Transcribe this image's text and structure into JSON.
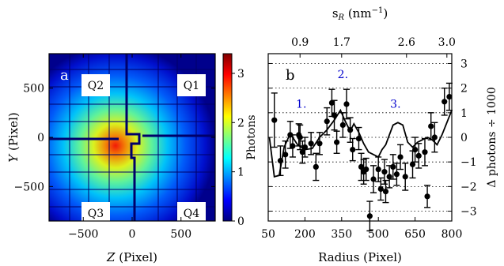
{
  "chart_data": [
    {
      "panel": "a",
      "type": "heatmap",
      "xlabel_var": "Z",
      "xlabel_unit": "(Pixel)",
      "ylabel_var": "Y",
      "ylabel_unit": "(Pixel)",
      "xlim": [
        -850,
        850
      ],
      "ylim": [
        -850,
        850
      ],
      "xticks": [
        "−500",
        "0",
        "500"
      ],
      "xtick_values": [
        -500,
        0,
        500
      ],
      "yticks": [
        "500",
        "0",
        "−500"
      ],
      "ytick_values": [
        500,
        0,
        -500
      ],
      "quadrant_labels": [
        "Q1",
        "Q2",
        "Q3",
        "Q4"
      ],
      "colorbar": {
        "label": "Photons",
        "range": [
          0,
          3.4
        ],
        "ticks": [
          "0",
          "1",
          "2",
          "3"
        ],
        "tick_values": [
          0,
          1,
          2,
          3
        ],
        "colormap": [
          "#00007f",
          "#0000ff",
          "#007fff",
          "#00ffff",
          "#7fff7f",
          "#ffff00",
          "#ff7f00",
          "#ff0000",
          "#7f0000"
        ]
      }
    },
    {
      "panel": "b",
      "type": "scatter",
      "xlabel": "Radius (Pixel)",
      "top_xlabel": "s",
      "top_xlabel_sub": "R",
      "top_xlabel_unit": " (nm",
      "top_xlabel_exp": "−1",
      "top_xlabel_close": ")",
      "ylabel": "Δ photons ÷ 1000",
      "xlim": [
        50,
        800
      ],
      "ylim": [
        -3.4,
        3.4
      ],
      "xticks": [
        "50",
        "200",
        "350",
        "500",
        "650",
        "800"
      ],
      "xtick_values": [
        50,
        200,
        350,
        500,
        650,
        800
      ],
      "yticks": [
        "3",
        "2",
        "1",
        "0",
        "−1",
        "−2",
        "−3"
      ],
      "ytick_values": [
        3,
        2,
        1,
        0,
        -1,
        -2,
        -3
      ],
      "top_xticks": [
        "0.9",
        "1.7",
        "2.6",
        "3.0"
      ],
      "top_xtick_positions": [
        180,
        350,
        615,
        780
      ],
      "grid": "horizontal dotted",
      "annotations": [
        {
          "text": "1.",
          "x": 185,
          "y": 1.2
        },
        {
          "text": "2.",
          "x": 355,
          "y": 2.4
        },
        {
          "text": "3.",
          "x": 570,
          "y": 1.2
        }
      ],
      "annotation_color": "#0000cc",
      "series": [
        {
          "kind": "points_with_errorbars",
          "x": [
            75,
            100,
            120,
            140,
            150,
            175,
            180,
            190,
            200,
            225,
            245,
            260,
            290,
            310,
            320,
            330,
            355,
            370,
            385,
            395,
            420,
            430,
            440,
            450,
            465,
            480,
            500,
            510,
            525,
            530,
            545,
            560,
            575,
            590,
            610,
            640,
            650,
            665,
            690,
            700,
            715,
            730,
            770,
            790
          ],
          "y": [
            0.7,
            -0.95,
            -0.7,
            0.1,
            -0.35,
            0.1,
            0.0,
            -0.6,
            -0.4,
            -0.25,
            -1.2,
            -0.25,
            0.65,
            1.4,
            0.9,
            -0.2,
            0.5,
            1.35,
            0.3,
            -0.5,
            -0.05,
            -1.2,
            -1.4,
            -1.3,
            -3.2,
            -1.7,
            -1.3,
            -2.1,
            -1.4,
            -2.2,
            -1.6,
            -1.2,
            -1.5,
            -0.8,
            -1.6,
            -1.1,
            -0.5,
            -0.75,
            -0.6,
            -2.4,
            0.45,
            0.0,
            1.45,
            1.65
          ],
          "yerr": [
            1.1,
            0.6,
            0.55,
            0.55,
            0.45,
            0.45,
            0.5,
            0.45,
            0.4,
            0.45,
            0.55,
            0.45,
            0.55,
            0.55,
            0.6,
            0.45,
            0.5,
            0.6,
            0.5,
            0.45,
            0.45,
            0.55,
            0.5,
            0.45,
            0.6,
            0.55,
            0.5,
            0.45,
            0.5,
            0.45,
            0.45,
            0.5,
            0.45,
            0.5,
            0.55,
            0.55,
            0.5,
            0.5,
            0.55,
            0.45,
            0.55,
            0.6,
            0.55,
            0.55
          ]
        },
        {
          "kind": "line",
          "x": [
            55,
            75,
            95,
            115,
            140,
            170,
            200,
            230,
            260,
            290,
            320,
            345,
            365,
            385,
            400,
            420,
            440,
            460,
            480,
            500,
            515,
            530,
            545,
            560,
            580,
            600,
            620,
            640,
            660,
            680,
            700,
            720,
            740,
            760,
            780,
            800
          ],
          "y": [
            0.0,
            -1.6,
            -1.55,
            -0.4,
            0.15,
            -0.3,
            -0.5,
            -0.45,
            0.0,
            0.3,
            0.7,
            1.1,
            0.65,
            0.25,
            0.55,
            0.2,
            -0.25,
            -0.6,
            -0.7,
            -0.8,
            -0.5,
            -0.3,
            0.1,
            0.5,
            0.6,
            0.5,
            -0.2,
            -0.4,
            -0.2,
            -0.1,
            0.0,
            -0.1,
            -0.3,
            0.1,
            0.6,
            1.1
          ]
        }
      ]
    }
  ]
}
